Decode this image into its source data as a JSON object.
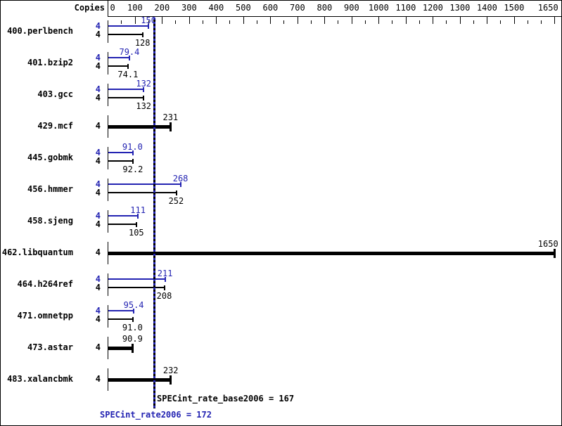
{
  "header": {
    "copies_label": "Copies"
  },
  "axis": {
    "min": 0,
    "max": 1650,
    "tick_labels": [
      0,
      100,
      200,
      300,
      400,
      500,
      600,
      700,
      800,
      900,
      1000,
      1100,
      1200,
      1300,
      1400,
      1500,
      1650
    ],
    "minor_step": 50
  },
  "colors": {
    "peak": "#2323b2",
    "base": "#000000"
  },
  "benchmarks": [
    {
      "name": "400.perlbench",
      "bars": [
        {
          "kind": "peak",
          "copies": "4",
          "value": 150,
          "label": "150"
        },
        {
          "kind": "base",
          "copies": "4",
          "value": 128,
          "label": "128"
        }
      ]
    },
    {
      "name": "401.bzip2",
      "bars": [
        {
          "kind": "peak",
          "copies": "4",
          "value": 79.4,
          "label": "79.4"
        },
        {
          "kind": "base",
          "copies": "4",
          "value": 74.1,
          "label": "74.1"
        }
      ]
    },
    {
      "name": "403.gcc",
      "bars": [
        {
          "kind": "peak",
          "copies": "4",
          "value": 132,
          "label": "132"
        },
        {
          "kind": "base",
          "copies": "4",
          "value": 132,
          "label": "132"
        }
      ]
    },
    {
      "name": "429.mcf",
      "bars": [
        {
          "kind": "base-only",
          "copies": "4",
          "value": 231,
          "label": "231"
        }
      ]
    },
    {
      "name": "445.gobmk",
      "bars": [
        {
          "kind": "peak",
          "copies": "4",
          "value": 91.0,
          "label": "91.0"
        },
        {
          "kind": "base",
          "copies": "4",
          "value": 92.2,
          "label": "92.2"
        }
      ]
    },
    {
      "name": "456.hmmer",
      "bars": [
        {
          "kind": "peak",
          "copies": "4",
          "value": 268,
          "label": "268"
        },
        {
          "kind": "base",
          "copies": "4",
          "value": 252,
          "label": "252"
        }
      ]
    },
    {
      "name": "458.sjeng",
      "bars": [
        {
          "kind": "peak",
          "copies": "4",
          "value": 111,
          "label": "111"
        },
        {
          "kind": "base",
          "copies": "4",
          "value": 105,
          "label": "105"
        }
      ]
    },
    {
      "name": "462.libquantum",
      "bars": [
        {
          "kind": "base-only",
          "copies": "4",
          "value": 1650,
          "label": "1650"
        }
      ]
    },
    {
      "name": "464.h264ref",
      "bars": [
        {
          "kind": "peak",
          "copies": "4",
          "value": 211,
          "label": "211"
        },
        {
          "kind": "base",
          "copies": "4",
          "value": 208,
          "label": "208"
        }
      ]
    },
    {
      "name": "471.omnetpp",
      "bars": [
        {
          "kind": "peak",
          "copies": "4",
          "value": 95.4,
          "label": "95.4"
        },
        {
          "kind": "base",
          "copies": "4",
          "value": 91.0,
          "label": "91.0"
        }
      ]
    },
    {
      "name": "473.astar",
      "bars": [
        {
          "kind": "base-only",
          "copies": "4",
          "value": 90.9,
          "label": "90.9"
        }
      ]
    },
    {
      "name": "483.xalancbmk",
      "bars": [
        {
          "kind": "base-only",
          "copies": "4",
          "value": 232,
          "label": "232"
        }
      ]
    }
  ],
  "reference_line": {
    "value": 172
  },
  "summary": {
    "base_label": "SPECint_rate_base2006 = 167",
    "peak_label": "SPECint_rate2006 = 172"
  },
  "chart_data": {
    "type": "bar",
    "orientation": "horizontal",
    "title": "",
    "xlabel": "",
    "ylabel": "",
    "categories": [
      "400.perlbench",
      "401.bzip2",
      "403.gcc",
      "429.mcf",
      "445.gobmk",
      "456.hmmer",
      "458.sjeng",
      "462.libquantum",
      "464.h264ref",
      "471.omnetpp",
      "473.astar",
      "483.xalancbmk"
    ],
    "copies": [
      4,
      4,
      4,
      4,
      4,
      4,
      4,
      4,
      4,
      4,
      4,
      4
    ],
    "series": [
      {
        "name": "SPECint_rate2006 (peak)",
        "color": "#2323b2",
        "values": [
          150,
          79.4,
          132,
          null,
          91.0,
          268,
          111,
          null,
          211,
          95.4,
          null,
          null
        ]
      },
      {
        "name": "SPECint_rate_base2006 (base)",
        "color": "#000000",
        "values": [
          128,
          74.1,
          132,
          231,
          92.2,
          252,
          105,
          1650,
          208,
          91.0,
          90.9,
          232
        ]
      }
    ],
    "xlim": [
      0,
      1650
    ],
    "x_tick_labels": [
      0,
      100,
      200,
      300,
      400,
      500,
      600,
      700,
      800,
      900,
      1000,
      1100,
      1200,
      1300,
      1400,
      1500,
      1650
    ],
    "minor_tick_step": 50,
    "grid": false,
    "legend_position": "none",
    "reference_line": {
      "value": 172,
      "label": "SPECint_rate2006 = 172"
    },
    "annotations": [
      "SPECint_rate_base2006 = 167",
      "SPECint_rate2006 = 172"
    ]
  }
}
